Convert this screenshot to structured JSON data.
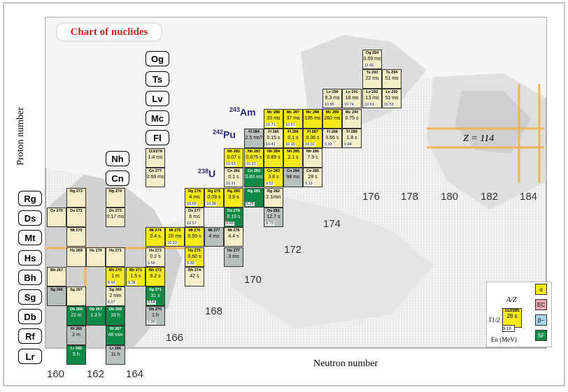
{
  "title": "Chart of nuclides",
  "ylabel": "Proton number",
  "xlabel": "Neutron number",
  "z_label": "Z = 114",
  "elements": {
    "Og": "Og",
    "Ts": "Ts",
    "Lv": "Lv",
    "Mc": "Mc",
    "Fl": "Fl",
    "Nh": "Nh",
    "Cn": "Cn",
    "Rg": "Rg",
    "Ds": "Ds",
    "Mt": "Mt",
    "Hs": "Hs",
    "Bh": "Bh",
    "Sg": "Sg",
    "Db": "Db",
    "Rf": "Rf",
    "Lr": "Lr"
  },
  "isotope_labels": {
    "am": "243Am",
    "pu": "242Pu",
    "u": "238U"
  },
  "n_labels": [
    "160",
    "162",
    "164",
    "166",
    "168",
    "170",
    "172",
    "174",
    "176",
    "178",
    "180",
    "182",
    "184"
  ],
  "colors": {
    "alpha": "#f5ea18",
    "ec": "#e8a8b0",
    "beta": "#a8d4ea",
    "sf": "#0e8a46",
    "unknown": "#f4eec8",
    "gray": "#b8c0bc"
  },
  "legend": {
    "az": "A/Z",
    "t12": "T1/2",
    "en": "En (MeV)",
    "alpha": "α",
    "ec": "EC",
    "beta": "β−",
    "sf": "SF",
    "cell_name": "112/285",
    "cell_hl": "28 s",
    "cell_en": "9.19"
  },
  "cells": [
    {
      "name": "Og 294",
      "hl": "0.69 ms",
      "en": "11.66",
      "c": "unknown"
    },
    {
      "name": "Ts 293",
      "hl": "22 ms",
      "en": "",
      "c": "unknown"
    },
    {
      "name": "Ts 294",
      "hl": "51 ms",
      "en": "",
      "c": "unknown"
    },
    {
      "name": "Lv 290",
      "hl": "8.3 ms",
      "en": "10.85",
      "c": "unknown"
    },
    {
      "name": "Lv 291",
      "hl": "18 ms",
      "en": "10.74",
      "c": "unknown"
    },
    {
      "name": "Lv 292",
      "hl": "13 ms",
      "en": "10.63",
      "c": "unknown"
    },
    {
      "name": "Lv 293",
      "hl": "51 ms",
      "en": "10.53",
      "c": "unknown"
    },
    {
      "name": "Mc 286",
      "hl": "20 ms",
      "en": "10.71",
      "c": "alpha"
    },
    {
      "name": "Mc 287",
      "hl": "37 ms",
      "en": "10.61",
      "c": "alpha"
    },
    {
      "name": "Mc 288",
      "hl": "195 ms",
      "en": "",
      "c": "alpha"
    },
    {
      "name": "Mc 289",
      "hl": "260 ms",
      "en": "",
      "c": "alpha"
    },
    {
      "name": "Mc 290",
      "hl": "0.75 s",
      "en": "",
      "c": "unknown"
    },
    {
      "name": "Fl 284",
      "hl": "2.5 ms?",
      "en": "",
      "c": "gray"
    },
    {
      "name": "Fl 285",
      "hl": "0.15 s",
      "en": "10.41",
      "c": "unknown"
    },
    {
      "name": "Fl 286",
      "hl": "0.1 s",
      "en": "10.19",
      "c": "alpha"
    },
    {
      "name": "Fl 287",
      "hl": "0.36 s",
      "en": "10.02",
      "c": "alpha"
    },
    {
      "name": "Fl 288",
      "hl": "0.66 s",
      "en": "9.93",
      "c": "unknown"
    },
    {
      "name": "Fl 289",
      "hl": "1.8 s",
      "en": "9.84",
      "c": "unknown"
    },
    {
      "name": "113/278",
      "hl": "1.4 ms",
      "en": "",
      "c": "unknown"
    },
    {
      "name": "Cn 277",
      "hl": "0.69 ms",
      "en": "",
      "c": "unknown"
    },
    {
      "name": "Nh 282",
      "hl": "0.07 s",
      "en": "10.63",
      "c": "alpha"
    },
    {
      "name": "Nh 283",
      "hl": "0.075 s",
      "en": "10.23",
      "c": "alpha"
    },
    {
      "name": "Nh 284",
      "hl": "0.89 s",
      "en": "",
      "c": "alpha"
    },
    {
      "name": "Nh 285",
      "hl": "2.1 s",
      "en": "",
      "c": "alpha"
    },
    {
      "name": "Nh 286",
      "hl": "7.9 s",
      "en": "",
      "c": "unknown"
    },
    {
      "name": "Cn 281",
      "hl": "0.1 s",
      "en": "10.31",
      "c": "unknown"
    },
    {
      "name": "Cn 282",
      "hl": "0.83 ms",
      "en": "",
      "c": "sf"
    },
    {
      "name": "Cn 283",
      "hl": "3.8 s",
      "en": "9.53",
      "c": "alpha"
    },
    {
      "name": "Cn 284",
      "hl": "98 ms",
      "en": "",
      "c": "gray"
    },
    {
      "name": "Cn 285",
      "hl": "28 s",
      "en": "9.19",
      "c": "unknown"
    },
    {
      "name": "Rg 272",
      "hl": "",
      "en": "",
      "c": "unknown"
    },
    {
      "name": "Rg 274",
      "hl": "",
      "en": "",
      "c": "unknown"
    },
    {
      "name": "Rg 278",
      "hl": "4 ms",
      "en": "10.69",
      "c": "alpha"
    },
    {
      "name": "Rg 279",
      "hl": "0.09 s",
      "en": "10.38",
      "c": "alpha"
    },
    {
      "name": "Rg 280",
      "hl": "3.9 s",
      "en": "",
      "c": "alpha"
    },
    {
      "name": "Rg 281",
      "hl": "",
      "en": "9.28",
      "c": "sf"
    },
    {
      "name": "Rg 282",
      "hl": "2.1min",
      "en": "",
      "c": "unknown"
    },
    {
      "name": "Ds 270",
      "hl": "",
      "en": "",
      "c": "unknown"
    },
    {
      "name": "Ds 271",
      "hl": "",
      "en": "",
      "c": "unknown"
    },
    {
      "name": "Ds 273",
      "hl": "0.17 ms",
      "en": "",
      "c": "unknown"
    },
    {
      "name": "Ds 277",
      "hl": "6 ms",
      "en": "10.57",
      "c": "unknown"
    },
    {
      "name": "Ds 279",
      "hl": "0.19 s",
      "en": "9.69",
      "c": "sf"
    },
    {
      "name": "Ds 281",
      "hl": "12.7 s",
      "en": "8.73",
      "c": "gray"
    },
    {
      "name": "Mt 270",
      "hl": "",
      "en": "",
      "c": "unknown"
    },
    {
      "name": "Mt 274",
      "hl": "0.4 s",
      "en": "",
      "c": "alpha"
    },
    {
      "name": "Mt 275",
      "hl": "20 ms",
      "en": "10.33",
      "c": "alpha"
    },
    {
      "name": "Mt 276",
      "hl": "0.59 s",
      "en": "",
      "c": "alpha"
    },
    {
      "name": "Mt 277",
      "hl": "4 ms",
      "en": "",
      "c": "gray"
    },
    {
      "name": "Mt 278",
      "hl": "4.4 s",
      "en": "",
      "c": "unknown"
    },
    {
      "name": "Hs 269",
      "hl": "",
      "en": "",
      "c": "unknown"
    },
    {
      "name": "Hs 270",
      "hl": "",
      "en": "",
      "c": "unknown"
    },
    {
      "name": "Hs 271",
      "hl": "",
      "en": "",
      "c": "unknown"
    },
    {
      "name": "Hs 273",
      "hl": "0.2 s",
      "en": "9.59",
      "c": "unknown"
    },
    {
      "name": "Hs 275",
      "hl": "0.60 s",
      "en": "9.30",
      "c": "alpha"
    },
    {
      "name": "Hs 277",
      "hl": "3 ms",
      "en": "",
      "c": "gray"
    },
    {
      "name": "Bh 267",
      "hl": "",
      "en": "",
      "c": "unknown"
    },
    {
      "name": "Bh 270",
      "hl": "1 m",
      "en": "8.93",
      "c": "alpha"
    },
    {
      "name": "Bh 271",
      "hl": "1.5 s",
      "en": "9.28",
      "c": "alpha"
    },
    {
      "name": "Bh 272",
      "hl": "9.2 s",
      "en": "",
      "c": "alpha"
    },
    {
      "name": "Bh 274",
      "hl": "42 s",
      "en": "",
      "c": "unknown"
    },
    {
      "name": "Sg 266",
      "hl": "",
      "en": "",
      "c": "gray"
    },
    {
      "name": "Sg 267",
      "hl": "",
      "en": "",
      "c": "unknown"
    },
    {
      "name": "Sg 269",
      "hl": "2 min",
      "en": "8.57",
      "c": "unknown"
    },
    {
      "name": "Sg 271",
      "hl": "31 s",
      "en": "8.54",
      "c": "sf"
    },
    {
      "name": "Db 266",
      "hl": "22 m",
      "en": "",
      "c": "sf"
    },
    {
      "name": "Db 267",
      "hl": "1.3 h",
      "en": "",
      "c": "sf"
    },
    {
      "name": "Db 268",
      "hl": "16 h",
      "en": "",
      "c": "sf"
    },
    {
      "name": "Db 270",
      "hl": "1 h",
      "en": "7.90",
      "c": "gray"
    },
    {
      "name": "Rf 265",
      "hl": "2 m",
      "en": "",
      "c": "gray"
    },
    {
      "name": "Rf 267",
      "hl": "48 min",
      "en": "",
      "c": "sf"
    },
    {
      "name": "Lr 266",
      "hl": "5 h",
      "en": "",
      "c": "sf"
    },
    {
      "name": "Lr 266",
      "hl": "11 h",
      "en": "",
      "c": "gray"
    }
  ]
}
